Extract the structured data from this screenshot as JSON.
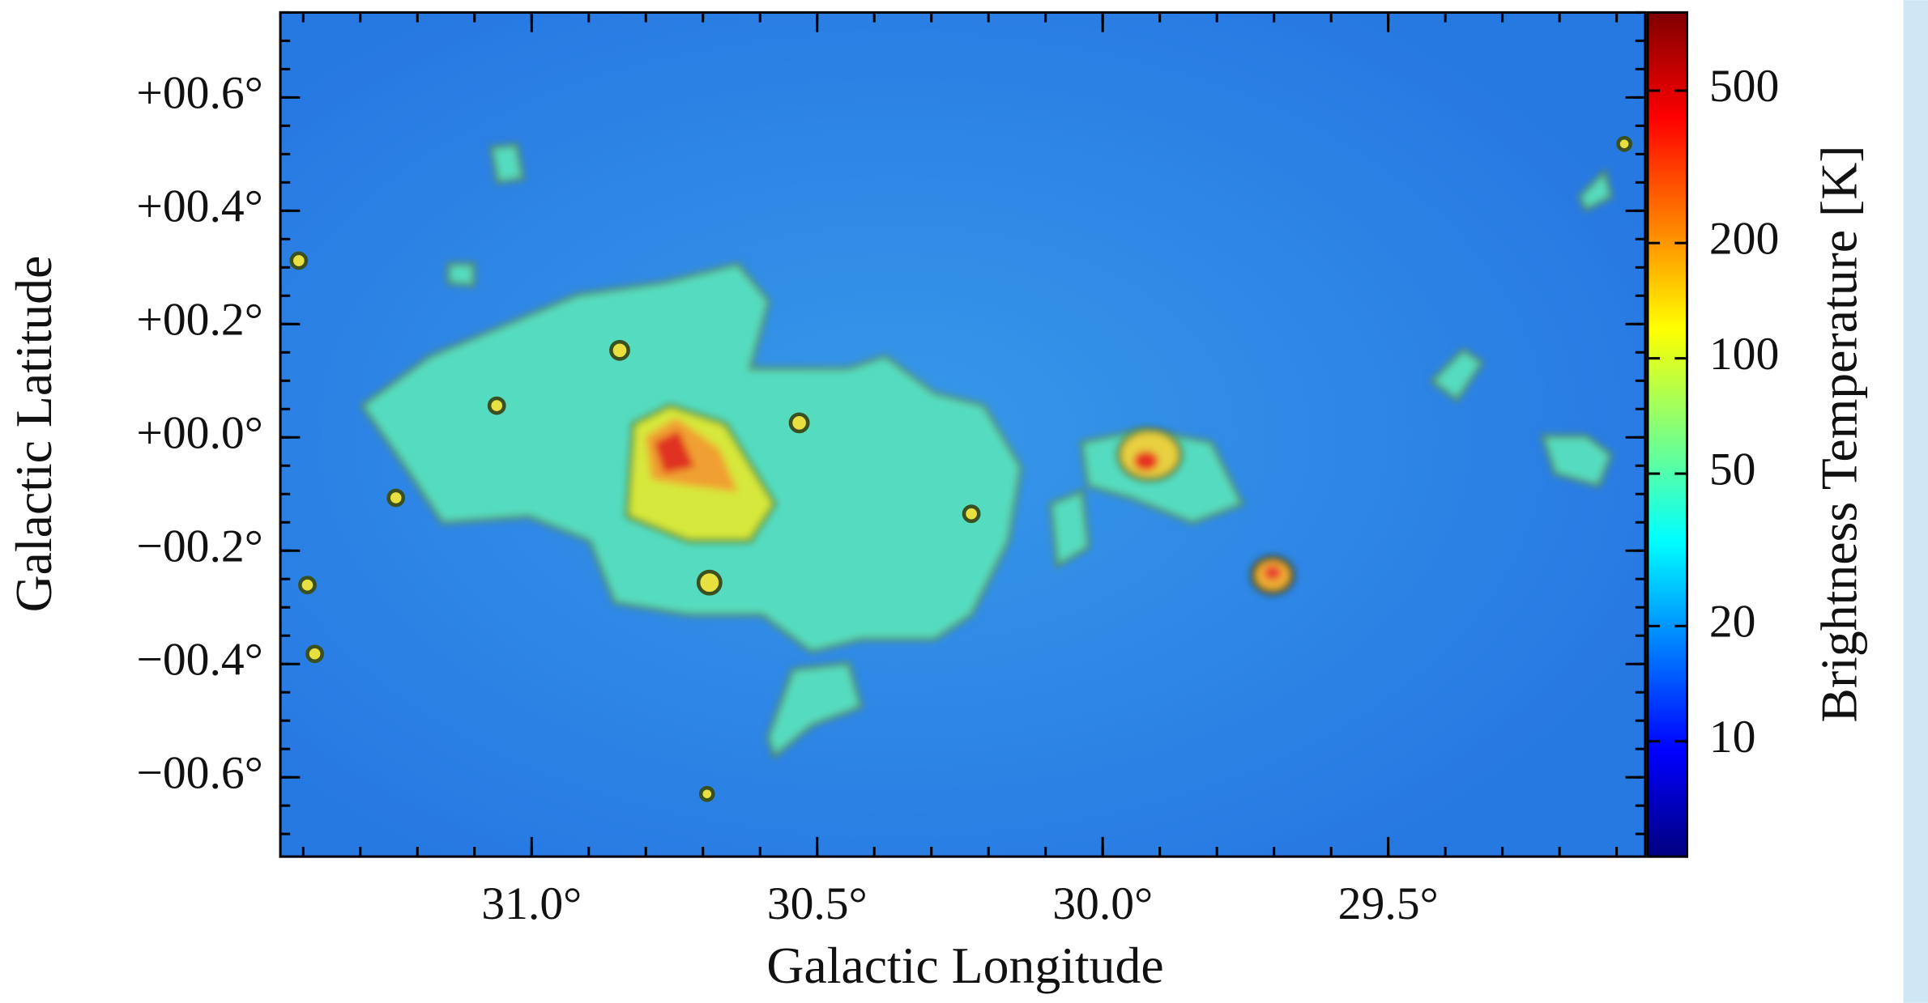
{
  "chart_data": {
    "type": "image",
    "xlabel": "Galactic Longitude",
    "ylabel": "Galactic Latitude",
    "xlim": [
      31.44,
      29.05
    ],
    "ylim": [
      -0.74,
      0.75
    ],
    "xticks": [
      {
        "value": 31.0,
        "label": "31.0°"
      },
      {
        "value": 30.5,
        "label": "30.5°"
      },
      {
        "value": 30.0,
        "label": "30.0°"
      },
      {
        "value": 29.5,
        "label": "29.5°"
      }
    ],
    "yticks": [
      {
        "value": 0.6,
        "label": "+00.6°"
      },
      {
        "value": 0.4,
        "label": "+00.4°"
      },
      {
        "value": 0.2,
        "label": "+00.2°"
      },
      {
        "value": 0.0,
        "label": "+00.0°"
      },
      {
        "value": -0.2,
        "label": "−00.2°"
      },
      {
        "value": -0.4,
        "label": "−00.4°"
      },
      {
        "value": -0.6,
        "label": "−00.6°"
      }
    ],
    "colorbar": {
      "label": "Brightness Temperature [K]",
      "scale": "log",
      "colormap": "jet",
      "clim": [
        5,
        800
      ],
      "ticks": [
        10,
        20,
        50,
        100,
        200,
        500
      ]
    }
  }
}
